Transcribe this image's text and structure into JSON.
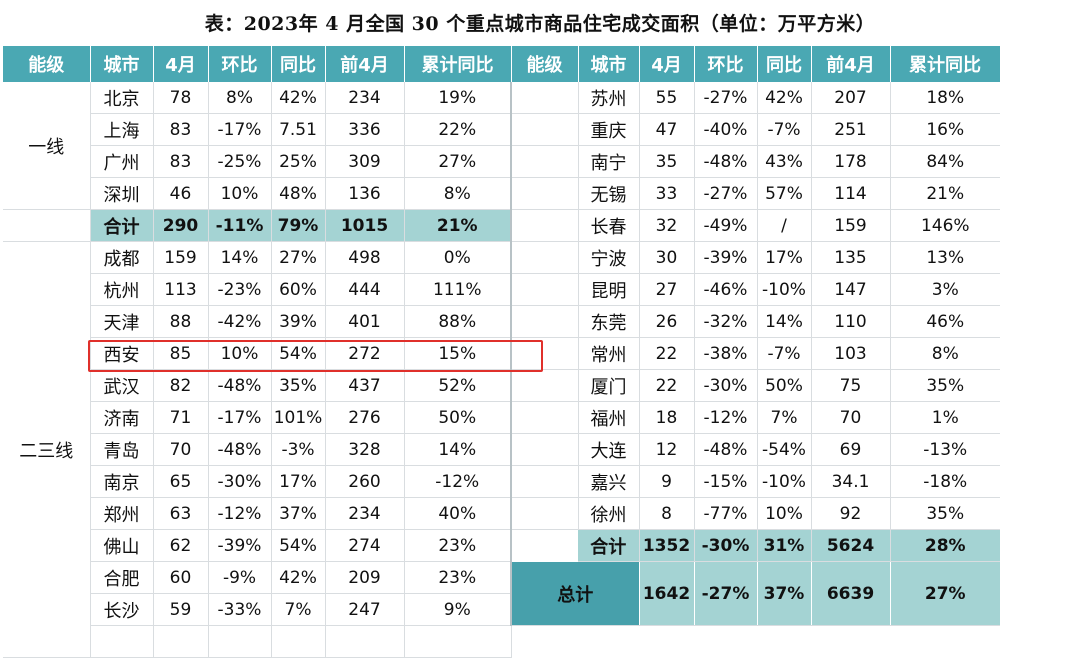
{
  "title": "表：2023年 4 月全国 30 个重点城市商品住宅成交面积（单位：万平方米）",
  "headers": [
    "能级",
    "城市",
    "4月",
    "环比",
    "同比",
    "前4月",
    "累计同比",
    "能级",
    "城市",
    "4月",
    "环比",
    "同比",
    "前4月",
    "累计同比"
  ],
  "left": {
    "tier1_label": "一线",
    "tier1_rows": [
      [
        "北京",
        "78",
        "8%",
        "42%",
        "234",
        "19%"
      ],
      [
        "上海",
        "83",
        "-17%",
        "7.51",
        "336",
        "22%"
      ],
      [
        "广州",
        "83",
        "-25%",
        "25%",
        "309",
        "27%"
      ],
      [
        "深圳",
        "46",
        "10%",
        "48%",
        "136",
        "8%"
      ]
    ],
    "tier1_sum": [
      "合计",
      "290",
      "-11%",
      "79%",
      "1015",
      "21%"
    ],
    "tier23_label": "二三线",
    "tier23_rows": [
      [
        "成都",
        "159",
        "14%",
        "27%",
        "498",
        "0%"
      ],
      [
        "杭州",
        "113",
        "-23%",
        "60%",
        "444",
        "111%"
      ],
      [
        "天津",
        "88",
        "-42%",
        "39%",
        "401",
        "88%"
      ],
      [
        "西安",
        "85",
        "10%",
        "54%",
        "272",
        "15%"
      ],
      [
        "武汉",
        "82",
        "-48%",
        "35%",
        "437",
        "52%"
      ],
      [
        "济南",
        "71",
        "-17%",
        "101%",
        "276",
        "50%"
      ],
      [
        "青岛",
        "70",
        "-48%",
        "-3%",
        "328",
        "14%"
      ],
      [
        "南京",
        "65",
        "-30%",
        "17%",
        "260",
        "-12%"
      ],
      [
        "郑州",
        "63",
        "-12%",
        "37%",
        "234",
        "40%"
      ],
      [
        "佛山",
        "62",
        "-39%",
        "54%",
        "274",
        "23%"
      ],
      [
        "合肥",
        "60",
        "-9%",
        "42%",
        "209",
        "23%"
      ],
      [
        "长沙",
        "59",
        "-33%",
        "7%",
        "247",
        "9%"
      ]
    ]
  },
  "right": {
    "rows": [
      [
        "苏州",
        "55",
        "-27%",
        "42%",
        "207",
        "18%"
      ],
      [
        "重庆",
        "47",
        "-40%",
        "-7%",
        "251",
        "16%"
      ],
      [
        "南宁",
        "35",
        "-48%",
        "43%",
        "178",
        "84%"
      ],
      [
        "无锡",
        "33",
        "-27%",
        "57%",
        "114",
        "21%"
      ],
      [
        "长春",
        "32",
        "-49%",
        "/",
        "159",
        "146%"
      ],
      [
        "宁波",
        "30",
        "-39%",
        "17%",
        "135",
        "13%"
      ],
      [
        "昆明",
        "27",
        "-46%",
        "-10%",
        "147",
        "3%"
      ],
      [
        "东莞",
        "26",
        "-32%",
        "14%",
        "110",
        "46%"
      ],
      [
        "常州",
        "22",
        "-38%",
        "-7%",
        "103",
        "8%"
      ],
      [
        "厦门",
        "22",
        "-30%",
        "50%",
        "75",
        "35%"
      ],
      [
        "福州",
        "18",
        "-12%",
        "7%",
        "70",
        "1%"
      ],
      [
        "大连",
        "12",
        "-48%",
        "-54%",
        "69",
        "-13%"
      ],
      [
        "嘉兴",
        "9",
        "-15%",
        "-10%",
        "34.1",
        "-18%"
      ],
      [
        "徐州",
        "8",
        "-77%",
        "10%",
        "92",
        "35%"
      ]
    ],
    "sum": [
      "合计",
      "1352",
      "-30%",
      "31%",
      "5624",
      "28%"
    ],
    "total": [
      "总计",
      "1642",
      "-27%",
      "37%",
      "6639",
      "27%"
    ]
  },
  "highlight_city": "西安",
  "colors": {
    "header": "#4aa8b3",
    "sum_row": "#a4d3d3",
    "highlight_border": "#e0302b"
  }
}
